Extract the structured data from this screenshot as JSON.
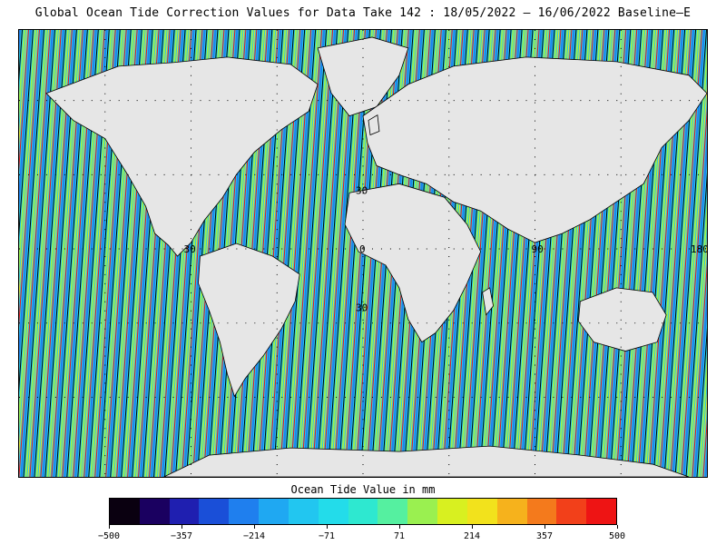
{
  "title": "Global Ocean Tide Correction Values for Data Take 142 : 18/05/2022 – 16/06/2022 Baseline–E",
  "map": {
    "grid_labels": [
      "30",
      "30",
      "0",
      "90",
      "180",
      "30"
    ],
    "grid": "dotted 30-degree graticule",
    "land_color": "#e6e6e6",
    "coastline_color": "#000000"
  },
  "legend": {
    "title": "Ocean Tide Value in mm",
    "ticks": [
      "−500",
      "−357",
      "−214",
      "−71",
      "71",
      "214",
      "357",
      "500"
    ],
    "range": [
      -500,
      500
    ],
    "colors": [
      "#0a0010",
      "#1a0060",
      "#1f1fb0",
      "#1a4fd8",
      "#1f7fee",
      "#1fa8f2",
      "#22c6f0",
      "#23dcea",
      "#2ee8d0",
      "#55f0a0",
      "#9af050",
      "#d8f020",
      "#f2e21c",
      "#f6b21c",
      "#f47a1c",
      "#f2401a",
      "#ee1414"
    ]
  }
}
